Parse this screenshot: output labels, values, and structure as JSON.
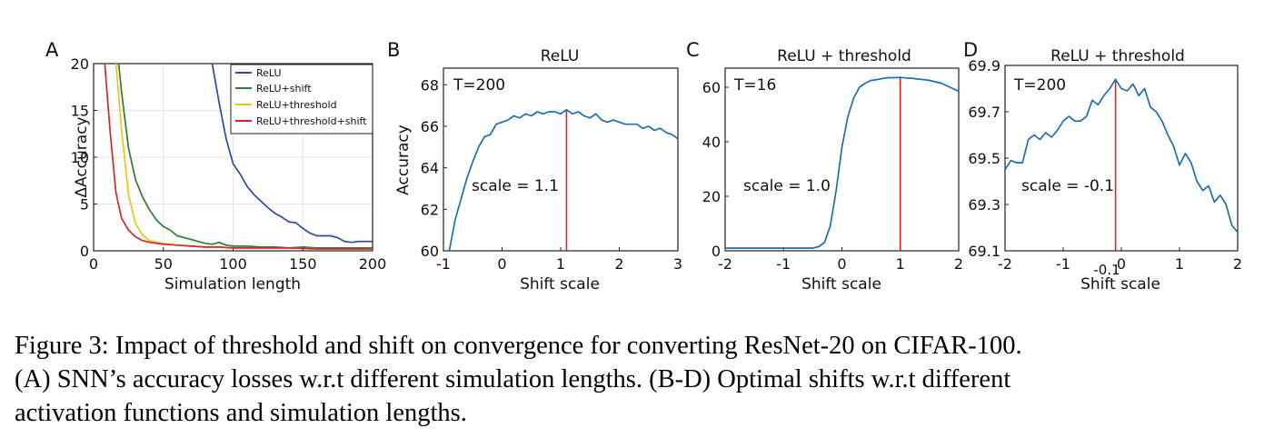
{
  "chart_data": [
    {
      "panel_label": "A",
      "type": "line",
      "title": "",
      "xlabel": "Simulation length",
      "ylabel": "ΔAccuracy",
      "xlim": [
        0,
        200
      ],
      "ylim": [
        0,
        20
      ],
      "xticks": [
        0,
        50,
        100,
        150,
        200
      ],
      "yticks": [
        0,
        5,
        10,
        15,
        20
      ],
      "grid": true,
      "legend_position": "top-right",
      "series": [
        {
          "name": "ReLU",
          "color": "#2b4aa5",
          "x": [
            85,
            90,
            95,
            100,
            105,
            110,
            115,
            120,
            125,
            130,
            135,
            140,
            145,
            150,
            155,
            160,
            165,
            170,
            175,
            180,
            185,
            190,
            195,
            200
          ],
          "y": [
            20,
            15.8,
            12.0,
            9.3,
            8.2,
            6.9,
            6.0,
            5.3,
            4.6,
            4.0,
            3.6,
            3.1,
            3.0,
            2.4,
            1.9,
            1.6,
            1.6,
            1.6,
            1.4,
            1.0,
            0.9,
            1.0,
            1.0,
            1.0
          ]
        },
        {
          "name": "ReLU+shift",
          "color": "#2e7d32",
          "x": [
            18,
            20,
            25,
            30,
            35,
            40,
            45,
            50,
            55,
            60,
            65,
            70,
            75,
            80,
            85,
            90,
            95,
            100,
            110,
            120,
            130,
            140,
            150,
            160,
            170,
            180,
            190,
            200
          ],
          "y": [
            20,
            17.0,
            11.0,
            7.6,
            5.8,
            4.4,
            3.3,
            2.6,
            2.2,
            1.6,
            1.4,
            1.2,
            1.0,
            0.8,
            0.7,
            0.9,
            0.6,
            0.5,
            0.5,
            0.4,
            0.4,
            0.3,
            0.4,
            0.3,
            0.3,
            0.3,
            0.3,
            0.3
          ]
        },
        {
          "name": "ReLU+threshold",
          "color": "#f0c419",
          "x": [
            16,
            20,
            25,
            30,
            35,
            40,
            45,
            50,
            60,
            70,
            80,
            90,
            100,
            120,
            140,
            160,
            180,
            200
          ],
          "y": [
            20,
            13.0,
            6.0,
            2.9,
            1.7,
            1.1,
            0.9,
            0.8,
            0.6,
            0.5,
            0.4,
            0.4,
            0.3,
            0.3,
            0.3,
            0.2,
            0.2,
            0.2
          ]
        },
        {
          "name": "ReLU+threshold+shift",
          "color": "#d7262b",
          "x": [
            8,
            12,
            16,
            20,
            25,
            30,
            35,
            40,
            50,
            60,
            70,
            80,
            90,
            100,
            120,
            140,
            160,
            180,
            200
          ],
          "y": [
            20,
            12.5,
            6.2,
            3.5,
            2.2,
            1.5,
            1.1,
            0.9,
            0.7,
            0.6,
            0.5,
            0.4,
            0.4,
            0.3,
            0.3,
            0.3,
            0.2,
            0.2,
            0.2
          ]
        }
      ]
    },
    {
      "panel_label": "B",
      "type": "line",
      "title": "ReLU",
      "xlabel": "Shift scale",
      "ylabel": "Accuracy",
      "xlim": [
        -1,
        3
      ],
      "ylim": [
        60,
        68.8
      ],
      "xticks": [
        -1,
        0,
        1,
        2,
        3
      ],
      "yticks": [
        60,
        62,
        64,
        66,
        68
      ],
      "annotation_T": "T=200",
      "annotation_scale": "scale = 1.1",
      "optimal_shift": 1.1,
      "series": [
        {
          "name": "accuracy",
          "color": "#1f6fae",
          "x": [
            -0.9,
            -0.8,
            -0.7,
            -0.6,
            -0.5,
            -0.4,
            -0.3,
            -0.2,
            -0.1,
            0.0,
            0.1,
            0.2,
            0.3,
            0.4,
            0.5,
            0.6,
            0.7,
            0.8,
            0.9,
            1.0,
            1.1,
            1.2,
            1.3,
            1.4,
            1.5,
            1.6,
            1.7,
            1.8,
            1.9,
            2.0,
            2.1,
            2.2,
            2.3,
            2.4,
            2.5,
            2.6,
            2.7,
            2.8,
            2.9,
            3.0
          ],
          "y": [
            60.0,
            61.5,
            62.5,
            63.5,
            64.3,
            65.0,
            65.5,
            65.6,
            66.1,
            66.2,
            66.3,
            66.5,
            66.4,
            66.6,
            66.5,
            66.7,
            66.6,
            66.7,
            66.7,
            66.6,
            66.8,
            66.6,
            66.7,
            66.5,
            66.4,
            66.6,
            66.3,
            66.2,
            66.3,
            66.2,
            66.1,
            66.1,
            66.1,
            65.9,
            66.0,
            65.8,
            65.9,
            65.7,
            65.6,
            65.4
          ]
        }
      ]
    },
    {
      "panel_label": "C",
      "type": "line",
      "title": "ReLU + threshold",
      "xlabel": "Shift scale",
      "ylabel": "",
      "xlim": [
        -2,
        2
      ],
      "ylim": [
        0,
        67
      ],
      "xticks": [
        -2,
        -1,
        0,
        1,
        2
      ],
      "yticks": [
        0,
        20,
        40,
        60
      ],
      "annotation_T": "T=16",
      "annotation_scale": "scale = 1.0",
      "optimal_shift": 1.0,
      "series": [
        {
          "name": "accuracy",
          "color": "#1f6fae",
          "x": [
            -2.0,
            -1.5,
            -1.0,
            -0.5,
            -0.4,
            -0.3,
            -0.2,
            -0.1,
            0.0,
            0.1,
            0.2,
            0.3,
            0.4,
            0.5,
            0.6,
            0.7,
            0.8,
            0.9,
            1.0,
            1.1,
            1.2,
            1.3,
            1.4,
            1.5,
            1.6,
            1.7,
            1.8,
            1.9,
            2.0
          ],
          "y": [
            1,
            1,
            1,
            1,
            1.5,
            3,
            9,
            22,
            38,
            49,
            56,
            60,
            61.5,
            62.5,
            62.8,
            63.2,
            63.5,
            63.5,
            63.6,
            63.4,
            63.3,
            63,
            62.8,
            62.5,
            62,
            61.5,
            60.5,
            59.5,
            58.5
          ]
        }
      ]
    },
    {
      "panel_label": "D",
      "type": "line",
      "title": "ReLU + threshold",
      "xlabel": "Shift scale",
      "ylabel": "",
      "xlim": [
        -2,
        2
      ],
      "ylim": [
        69.1,
        69.9
      ],
      "xticks": [
        -2,
        -1,
        0,
        1,
        2
      ],
      "xtick_labels": [
        "-2",
        "-1",
        "0",
        "1",
        "2"
      ],
      "yticks": [
        69.1,
        69.3,
        69.5,
        69.7,
        69.9
      ],
      "ytick_labels": [
        "69.1",
        "69.3",
        "69.5",
        "69.7",
        "69.9"
      ],
      "annotation_T": "T=200",
      "annotation_scale": "scale = -0.1",
      "optimal_shift": -0.1,
      "optimal_shift_label": "-0.1",
      "series": [
        {
          "name": "accuracy",
          "color": "#1f6fae",
          "x": [
            -2.0,
            -1.9,
            -1.8,
            -1.7,
            -1.6,
            -1.5,
            -1.4,
            -1.3,
            -1.2,
            -1.1,
            -1.0,
            -0.9,
            -0.8,
            -0.7,
            -0.6,
            -0.5,
            -0.4,
            -0.3,
            -0.2,
            -0.1,
            0.0,
            0.1,
            0.2,
            0.3,
            0.4,
            0.5,
            0.6,
            0.7,
            0.8,
            0.9,
            1.0,
            1.1,
            1.2,
            1.3,
            1.4,
            1.5,
            1.6,
            1.7,
            1.8,
            1.9,
            2.0
          ],
          "y": [
            69.45,
            69.49,
            69.48,
            69.48,
            69.58,
            69.6,
            69.58,
            69.61,
            69.59,
            69.62,
            69.66,
            69.68,
            69.66,
            69.66,
            69.68,
            69.75,
            69.73,
            69.77,
            69.8,
            69.84,
            69.8,
            69.79,
            69.82,
            69.77,
            69.8,
            69.72,
            69.7,
            69.66,
            69.6,
            69.55,
            69.47,
            69.52,
            69.48,
            69.4,
            69.36,
            69.38,
            69.31,
            69.34,
            69.3,
            69.21,
            69.18
          ]
        }
      ]
    }
  ],
  "caption": {
    "line1": "Figure 3: Impact of threshold and shift on convergence for converting ResNet-20 on CIFAR-100.",
    "line2": "(A) SNN’s accuracy losses w.r.t different simulation lengths.  (B-D) Optimal shifts w.r.t different",
    "line3": "activation functions and simulation lengths."
  }
}
